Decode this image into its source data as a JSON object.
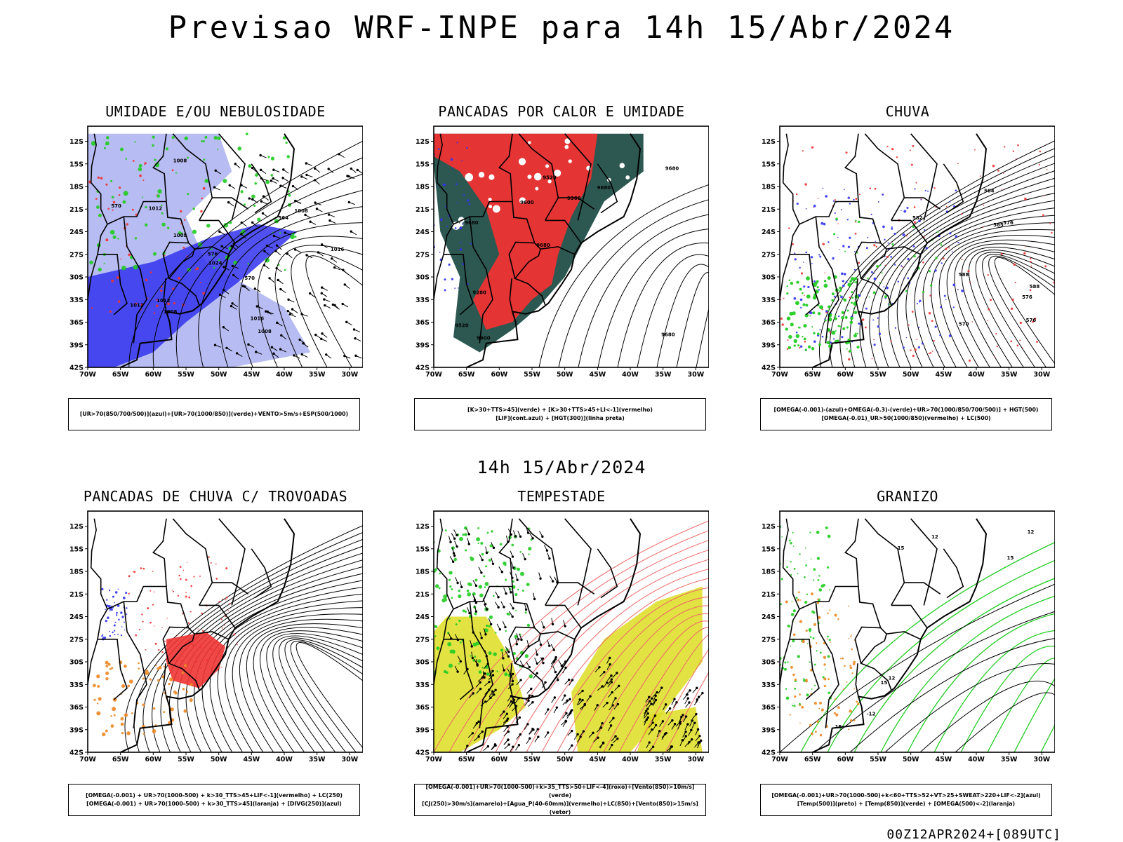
{
  "main_title": "Previsao WRF-INPE  para 14h 15/Abr/2024",
  "mid_title": "14h 15/Abr/2024",
  "footer_run": "00Z12APR2024+[089UTC]",
  "axes": {
    "lat_labels": [
      "12S",
      "15S",
      "18S",
      "21S",
      "24S",
      "27S",
      "30S",
      "33S",
      "36S",
      "39S",
      "42S"
    ],
    "lon_labels": [
      "70W",
      "65W",
      "60W",
      "55W",
      "50W",
      "45W",
      "40W",
      "35W",
      "30W"
    ]
  },
  "panels": [
    {
      "id": "umidade",
      "title": "UMIDADE E/OU NEBULOSIDADE",
      "legend": [
        "[UR>70(850/700/500)](azul)+[UR>70(1000/850)](verde)+VENTO>5m/s+ESP(500/1000)"
      ],
      "contour_labels": [
        "1008",
        "1008",
        "1012",
        "1012",
        "1008",
        "1016",
        "1016",
        "1008",
        "1024",
        "1008",
        "1012",
        "570",
        "576",
        "570",
        "564"
      ]
    },
    {
      "id": "pancadas-calor",
      "title": "PANCADAS POR CALOR E UMIDADE",
      "legend": [
        "[K>30+TTS>45](verde) + [K>30+TTS>45+LI<-1](vermelho)",
        "[LIF](cont.azul) + [HGT(300)](linha preta)"
      ],
      "contour_labels": [
        "9680",
        "9680",
        "9680",
        "9680",
        "9680",
        "9600",
        "9520",
        "9360",
        "9280",
        "9600",
        "9520"
      ]
    },
    {
      "id": "chuva",
      "title": "CHUVA",
      "legend": [
        "[OMEGA(-0.001)-(azul)+OMEGA(-0.3)-(verde)+UR>70(1000/850/700/500)] + HGT(500)",
        "[OMEGA(-0.01)_UR>50(1000/850)(vermelho) + LC(500)"
      ],
      "contour_labels": [
        "588",
        "588",
        "585",
        "576",
        "570",
        "564",
        "576",
        "582",
        "576"
      ]
    },
    {
      "id": "pancadas-trovoadas",
      "title": "PANCADAS DE CHUVA C/ TROVOADAS",
      "legend": [
        "[OMEGA(-0.001) + UR>70(1000-500) + k>30_TTS>45+LIF<-1](vermelho) + LC(250)",
        "[OMEGA(-0.001) + UR>70(1000-500) + k>30_TTS>45](laranja) + [DIVG(250)](azul)"
      ],
      "contour_labels": []
    },
    {
      "id": "tempestade",
      "title": "TEMPESTADE",
      "legend": [
        "[OMEGA(-0.001)+UR>70(1000-500)+k>35_TTS>50+LIF<-4](roxo)+[Vento(850)>10m/s](verde)",
        "[CJ(250)>30m/s](amarelo)+[Agua_P(40-60mm)](vermelho)+LC(850)+[Vento(850)>15m/s](vetor)"
      ],
      "contour_labels": []
    },
    {
      "id": "granizo",
      "title": "GRANIZO",
      "legend": [
        "[OMEGA(-0.001)+UR>70(1000-500)+k<60+TTS>52+VT>25+SWEAT>220+LIF<-2](azul)",
        "[Temp(500)](preto) + [Temp(850)](verde) + [OMEGA(500)<-2](laranja)"
      ],
      "contour_labels": [
        "15",
        "12",
        "12",
        "15",
        "-15",
        "-12",
        "12",
        "15"
      ]
    }
  ],
  "colors": {
    "blue": "#3333ee",
    "light_blue": "#aab0f0",
    "green": "#22cc22",
    "red": "#ee3333",
    "dark_teal": "#224f48",
    "orange": "#ee8822",
    "yellow": "#dddd22",
    "salmon": "#ee6666"
  }
}
